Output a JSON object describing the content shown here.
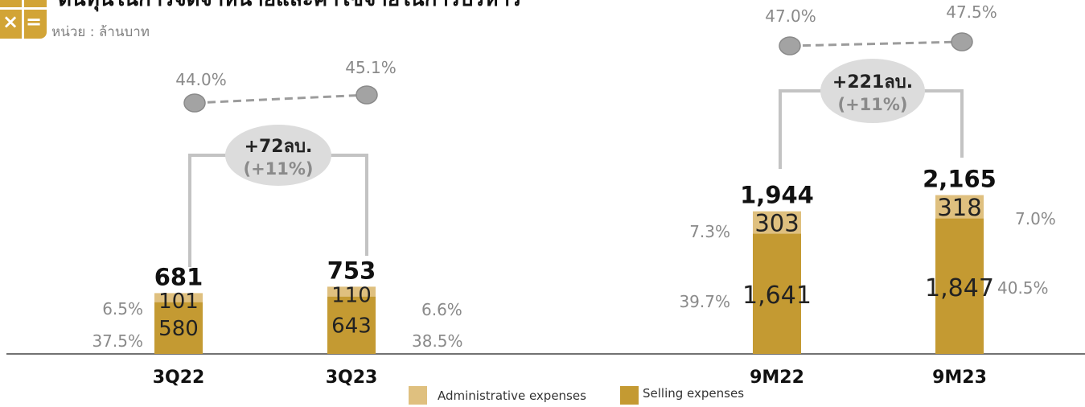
{
  "header": {
    "title": "ต้นทุนในการจัดจำหน่ายและค่าใช้จ่ายในการบริหาร",
    "unit": "หน่วย : ล้านบาท"
  },
  "colors": {
    "admin": "#dfc07f",
    "selling": "#c49a32",
    "gray_marker": "#a3a3a3",
    "bracket": "#c3c3c3",
    "bubble": "#dcdcdc"
  },
  "chart_data": {
    "type": "bar",
    "stacked": true,
    "categories": [
      "3Q22",
      "3Q23",
      "9M22",
      "9M23"
    ],
    "series": [
      {
        "name": "Selling expenses",
        "values": [
          580,
          643,
          1641,
          1847
        ]
      },
      {
        "name": "Administrative expenses",
        "values": [
          101,
          110,
          303,
          318
        ]
      }
    ],
    "totals": [
      "681",
      "753",
      "1,944",
      "2,165"
    ],
    "selling_labels": [
      "580",
      "643",
      "1,641",
      "1,847"
    ],
    "admin_labels": [
      "101",
      "110",
      "303",
      "318"
    ],
    "selling_pct": [
      "37.5%",
      "38.5%",
      "39.7%",
      "40.5%"
    ],
    "admin_pct": [
      "6.5%",
      "6.6%",
      "7.3%",
      "7.0%"
    ],
    "ratio_pct": [
      "44.0%",
      "45.1%",
      "47.0%",
      "47.5%"
    ],
    "changes": [
      {
        "amount": "+72ลบ.",
        "percent": "(+11%)"
      },
      {
        "amount": "+221ลบ.",
        "percent": "(+11%)"
      }
    ],
    "legend": {
      "admin": "Administrative expenses",
      "selling": "Selling expenses"
    }
  }
}
